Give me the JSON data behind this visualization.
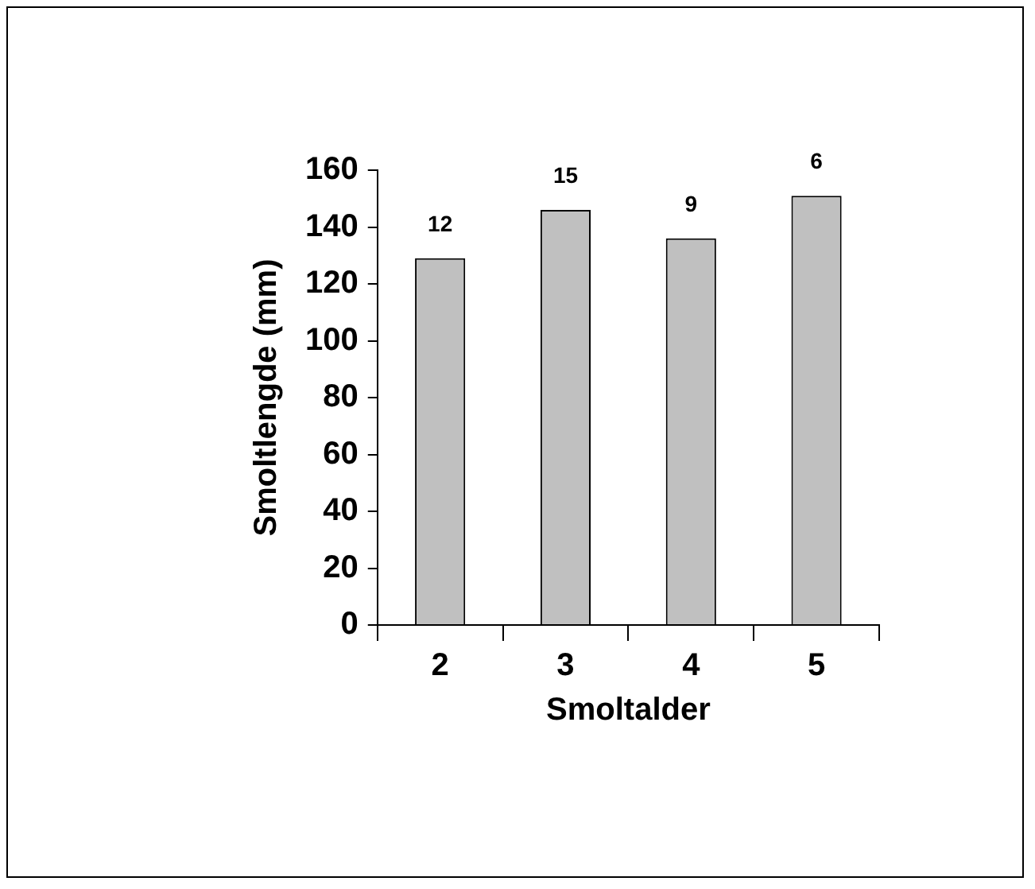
{
  "chart_data": {
    "type": "bar",
    "xlabel": "Smoltalder",
    "ylabel": "Smoltlengde (mm)",
    "categories": [
      "2",
      "3",
      "4",
      "5"
    ],
    "values": [
      129,
      146,
      136,
      151
    ],
    "color": "#c0c0c0",
    "ylim": [
      0,
      160
    ],
    "yticks": [
      0,
      20,
      40,
      60,
      80,
      100,
      120,
      140,
      160
    ],
    "grid": false,
    "legend": false,
    "annotations": [
      "12",
      "15",
      "9",
      "6"
    ]
  }
}
